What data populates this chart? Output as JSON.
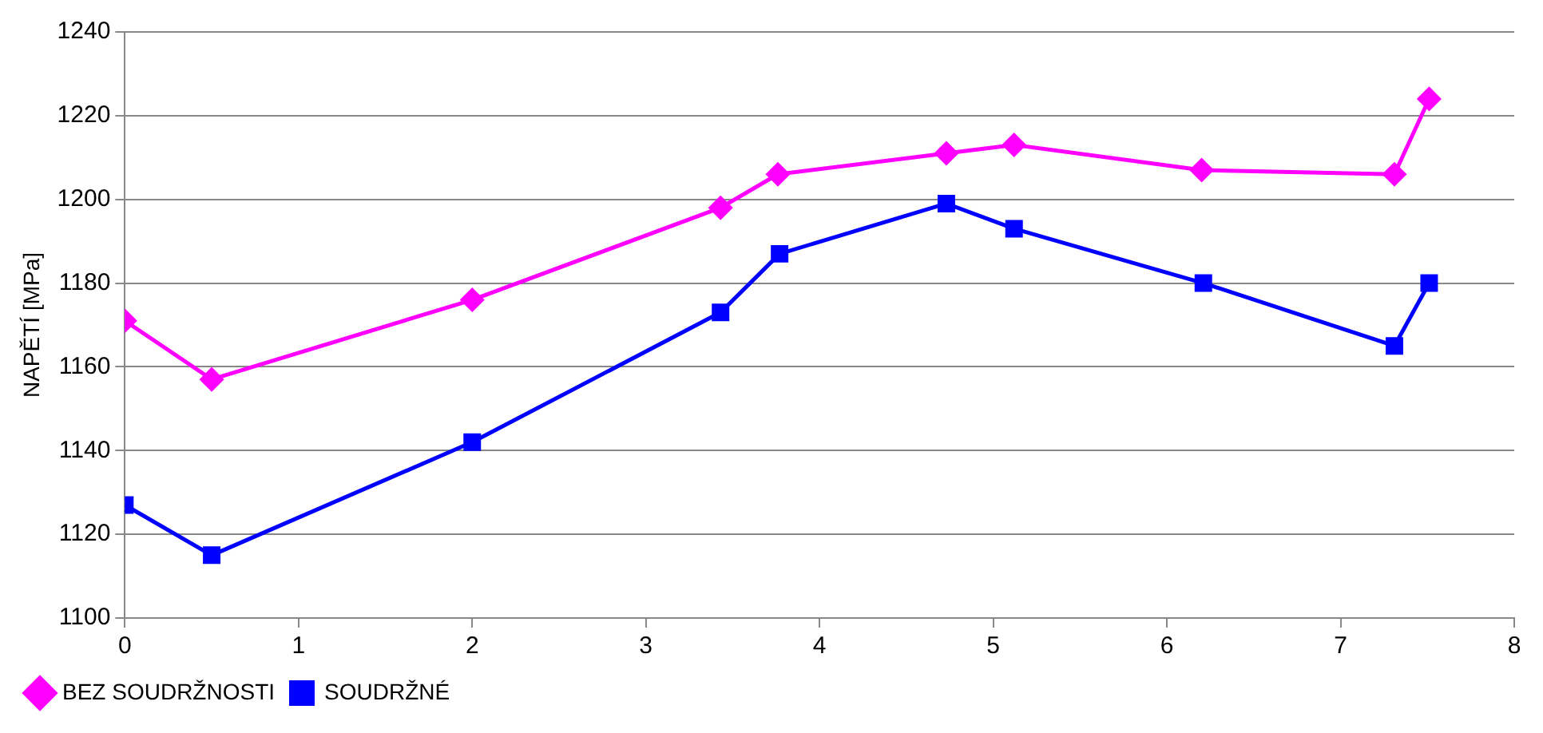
{
  "chart_data": {
    "type": "line",
    "ylabel": "NAPĚTÍ [MPa]",
    "xlim": [
      0,
      8
    ],
    "xticks": [
      0,
      1,
      2,
      3,
      4,
      5,
      6,
      7,
      8
    ],
    "ylim": [
      1100,
      1240
    ],
    "yticks": [
      1100,
      1120,
      1140,
      1160,
      1180,
      1200,
      1220,
      1240
    ],
    "grid": "y",
    "legend": "bottom",
    "line_style": "solid",
    "series": [
      {
        "name": "BEZ SOUDRŽNOSTI",
        "color": "#ff00ff",
        "marker": "diamond",
        "x": [
          0,
          0.5,
          2,
          3.43,
          3.76,
          4.73,
          5.12,
          6.2,
          7.31,
          7.51
        ],
        "values": [
          1171,
          1157,
          1176,
          1198,
          1206,
          1211,
          1213,
          1207,
          1206,
          1224
        ]
      },
      {
        "name": "SOUDRŽNÉ",
        "color": "#0000ff",
        "marker": "square",
        "x": [
          0,
          0.5,
          2,
          3.43,
          3.77,
          4.73,
          5.12,
          6.21,
          7.31,
          7.51
        ],
        "values": [
          1127,
          1115,
          1142,
          1173,
          1187,
          1199,
          1193,
          1180,
          1165,
          1180
        ]
      }
    ]
  }
}
